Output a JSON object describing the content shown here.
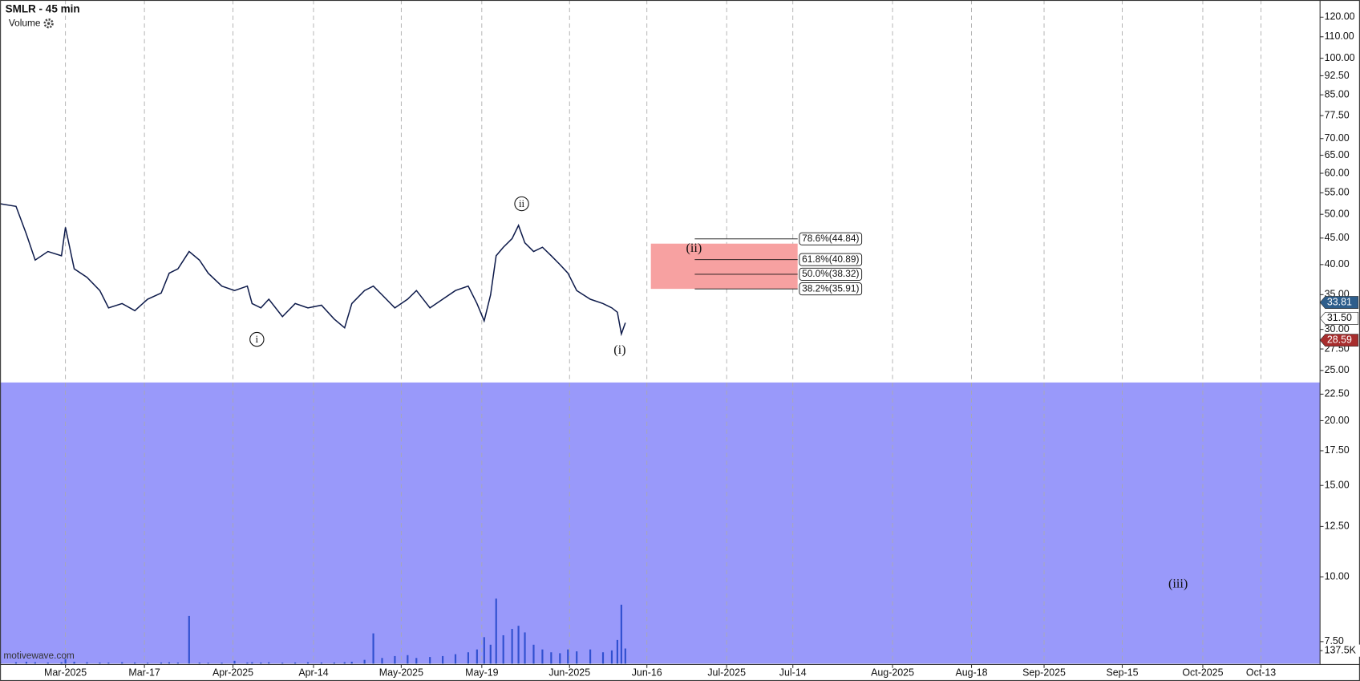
{
  "chart_data": {
    "type": "line",
    "title": "SMLR - 45 min",
    "study_label": "Volume",
    "watermark": "motivewave.com",
    "log_scale": true,
    "grid": true,
    "xlim": [
      -8.2,
      157.3
    ],
    "xticks": [
      {
        "value": 0,
        "label": "Mar-2025"
      },
      {
        "value": 9.9,
        "label": "Mar-17"
      },
      {
        "value": 21,
        "label": "Apr-2025"
      },
      {
        "value": 31.1,
        "label": "Apr-14"
      },
      {
        "value": 42.1,
        "label": "May-2025"
      },
      {
        "value": 52.2,
        "label": "May-19"
      },
      {
        "value": 63.2,
        "label": "Jun-2025"
      },
      {
        "value": 72.9,
        "label": "Jun-16"
      },
      {
        "value": 82.9,
        "label": "Jul-2025"
      },
      {
        "value": 91.2,
        "label": "Jul-14"
      },
      {
        "value": 103.7,
        "label": "Aug-2025"
      },
      {
        "value": 113.6,
        "label": "Aug-18"
      },
      {
        "value": 122.7,
        "label": "Sep-2025"
      },
      {
        "value": 132.5,
        "label": "Sep-15"
      },
      {
        "value": 142.6,
        "label": "Oct-2025"
      },
      {
        "value": 149.9,
        "label": "Oct-13"
      }
    ],
    "ylim": [
      6.8,
      129.5
    ],
    "yticks": [
      {
        "value": 7.5,
        "label": "7.50"
      },
      {
        "value": 10,
        "label": "10.00"
      },
      {
        "value": 12.5,
        "label": "12.50"
      },
      {
        "value": 15,
        "label": "15.00"
      },
      {
        "value": 17.5,
        "label": "17.50"
      },
      {
        "value": 20,
        "label": "20.00"
      },
      {
        "value": 22.5,
        "label": "22.50"
      },
      {
        "value": 25,
        "label": "25.00"
      },
      {
        "value": 27.5,
        "label": "27.50"
      },
      {
        "value": 30,
        "label": "30.00"
      },
      {
        "value": 35,
        "label": "35.00"
      },
      {
        "value": 40,
        "label": "40.00"
      },
      {
        "value": 45,
        "label": "45.00"
      },
      {
        "value": 50,
        "label": "50.00"
      },
      {
        "value": 55,
        "label": "55.00"
      },
      {
        "value": 60,
        "label": "60.00"
      },
      {
        "value": 65,
        "label": "65.00"
      },
      {
        "value": 70,
        "label": "70.00"
      },
      {
        "value": 77.5,
        "label": "77.50"
      },
      {
        "value": 85,
        "label": "85.00"
      },
      {
        "value": 92.5,
        "label": "92.50"
      },
      {
        "value": 100,
        "label": "100.00"
      },
      {
        "value": 110,
        "label": "110.00"
      },
      {
        "value": 120,
        "label": "120.00"
      }
    ],
    "y2lim": [
      0,
      825000
    ],
    "y2ticks": [
      {
        "value": 137500,
        "label": "137.5K"
      }
    ],
    "x": [
      -8.2,
      -6.2,
      -4.9,
      -3.8,
      -2.2,
      -0.5,
      0,
      1.1,
      2.7,
      4.3,
      5.4,
      7.1,
      8.7,
      10.3,
      12,
      13,
      14.1,
      15.5,
      16.8,
      17.9,
      19.6,
      21.2,
      22.8,
      23.4,
      24.5,
      25.5,
      27.2,
      28.8,
      30.4,
      32.1,
      33.7,
      35,
      35.9,
      37.5,
      38.6,
      39.7,
      41.3,
      42.9,
      44,
      45.7,
      47.3,
      48.9,
      50.5,
      51.6,
      52.5,
      53.3,
      54,
      54.9,
      56,
      56.8,
      57.6,
      58.7,
      59.8,
      60.9,
      62,
      63,
      64.1,
      65.8,
      67.4,
      68.5,
      69.2,
      69.7,
      70.2
    ],
    "series": [
      {
        "name": "SMLR",
        "color": "#0d1a4a",
        "values": [
          52.4,
          51.8,
          45.8,
          40.8,
          42.4,
          41.6,
          47.2,
          39.25,
          37.8,
          35.65,
          33.0,
          33.65,
          32.6,
          34.3,
          35.25,
          38.5,
          39.25,
          42.4,
          40.8,
          38.5,
          36.35,
          35.65,
          36.35,
          33.65,
          33.0,
          34.3,
          31.75,
          33.65,
          33.0,
          33.4,
          31.4,
          30.2,
          33.65,
          35.65,
          36.35,
          34.97,
          33.0,
          34.3,
          35.65,
          33.0,
          34.3,
          35.65,
          36.35,
          33.65,
          31.15,
          34.97,
          41.6,
          43.2,
          44.9,
          47.6,
          44.05,
          42.4,
          43.2,
          41.6,
          40.0,
          38.5,
          35.65,
          34.3,
          33.65,
          33.0,
          32.37,
          29.4,
          30.9
        ]
      },
      {
        "name": "Volume",
        "color": "#3050d0",
        "axis": "y2",
        "values": [
          20000,
          15000,
          20000,
          15000,
          12000,
          15000,
          50000,
          20000,
          15000,
          12000,
          12000,
          15000,
          12000,
          10000,
          12000,
          15000,
          12000,
          504000,
          12000,
          10000,
          10000,
          30000,
          12000,
          15000,
          12000,
          15000,
          10000,
          12000,
          15000,
          12000,
          12000,
          15000,
          20000,
          40000,
          320000,
          60000,
          80000,
          90000,
          60000,
          70000,
          80000,
          100000,
          120000,
          150000,
          280000,
          200000,
          687000,
          300000,
          367000,
          400000,
          330000,
          200000,
          150000,
          120000,
          110000,
          150000,
          130000,
          150000,
          120000,
          140000,
          250000,
          623000,
          160000
        ]
      }
    ],
    "shaded_zone": {
      "color": "#9999fa",
      "ylim": [
        6.8,
        23.7
      ]
    },
    "target_zone": {
      "color": "#f7a1a1",
      "x": [
        73.4,
        91.8
      ],
      "y": [
        35.91,
        43.9
      ]
    },
    "fib_levels": [
      {
        "value": 44.84,
        "label": "78.6%(44.84)"
      },
      {
        "value": 40.89,
        "label": "61.8%(40.89)"
      },
      {
        "value": 38.32,
        "label": "50.0%(38.32)"
      },
      {
        "value": 35.91,
        "label": "38.2%(35.91)"
      }
    ],
    "fib_x": [
      78.9,
      91.8
    ],
    "wave_labels": [
      {
        "label": "i",
        "x": 24,
        "y": 28.7,
        "circled": true
      },
      {
        "label": "ii",
        "x": 57.2,
        "y": 52.4,
        "circled": true
      },
      {
        "label": "(i)",
        "x": 69.5,
        "y": 27.4,
        "circled": false
      },
      {
        "label": "(ii)",
        "x": 78.8,
        "y": 43.05,
        "circled": false
      },
      {
        "label": "(iii)",
        "x": 139.5,
        "y": 9.7,
        "circled": false
      }
    ],
    "price_markers": [
      {
        "value": 33.81,
        "label": "33.81",
        "color": "#2e5e8c",
        "text_color": "#ffffff"
      },
      {
        "value": 31.5,
        "label": "31.50",
        "color": "#ffffff",
        "text_color": "#111111"
      },
      {
        "value": 28.59,
        "label": "28.59",
        "color": "#a82e2e",
        "text_color": "#ffffff"
      }
    ]
  }
}
